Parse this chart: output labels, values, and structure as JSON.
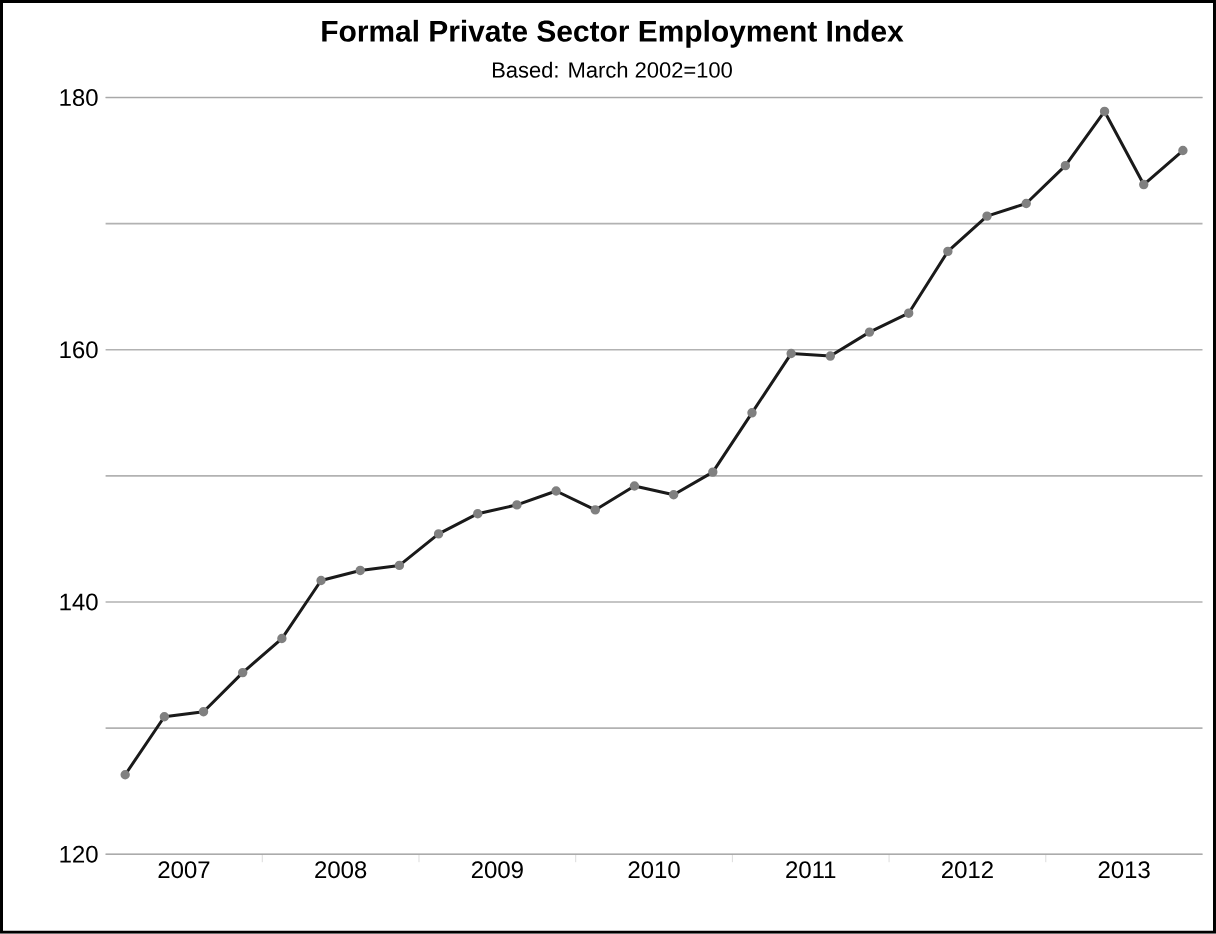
{
  "chart_data": {
    "type": "line",
    "title": "Formal Private Sector Employment Index",
    "subtitle": "Based: March 2002=100",
    "x": [
      2007.125,
      2007.375,
      2007.625,
      2007.875,
      2008.125,
      2008.375,
      2008.625,
      2008.875,
      2009.125,
      2009.375,
      2009.625,
      2009.875,
      2010.125,
      2010.375,
      2010.625,
      2010.875,
      2011.125,
      2011.375,
      2011.625,
      2011.875,
      2012.125,
      2012.375,
      2012.625,
      2012.875,
      2013.125,
      2013.375,
      2013.625,
      2013.875
    ],
    "series": [
      {
        "color": "#1a1a1a",
        "values": [
          126.3,
          130.9,
          131.3,
          134.4,
          137.1,
          141.7,
          142.5,
          142.9,
          145.4,
          147.0,
          147.7,
          148.8,
          147.3,
          149.2,
          148.5,
          150.3,
          155.0,
          159.7,
          159.5,
          161.4,
          162.9,
          167.8,
          170.6,
          171.6,
          174.6,
          178.9,
          173.1,
          175.8
        ]
      }
    ],
    "xlim": [
      2007,
      2014
    ],
    "xticks": [
      {
        "value": 2007.5,
        "label": "2007"
      },
      {
        "value": 2008,
        "label": null
      },
      {
        "value": 2008.5,
        "label": "2008"
      },
      {
        "value": 2009,
        "label": null
      },
      {
        "value": 2009.5,
        "label": "2009"
      },
      {
        "value": 2010,
        "label": null
      },
      {
        "value": 2010.5,
        "label": "2010"
      },
      {
        "value": 2011,
        "label": null
      },
      {
        "value": 2011.5,
        "label": "2011"
      },
      {
        "value": 2012,
        "label": null
      },
      {
        "value": 2012.5,
        "label": "2012"
      },
      {
        "value": 2013,
        "label": null
      },
      {
        "value": 2013.5,
        "label": "2013"
      }
    ],
    "ylim": [
      120,
      180
    ],
    "yticks": [
      120,
      {
        "value": 130,
        "label": null
      },
      140,
      {
        "value": 150,
        "label": null
      },
      160,
      {
        "value": 170,
        "label": null
      },
      180
    ],
    "grid": "y",
    "marker": "circle",
    "line_style": "solid"
  }
}
